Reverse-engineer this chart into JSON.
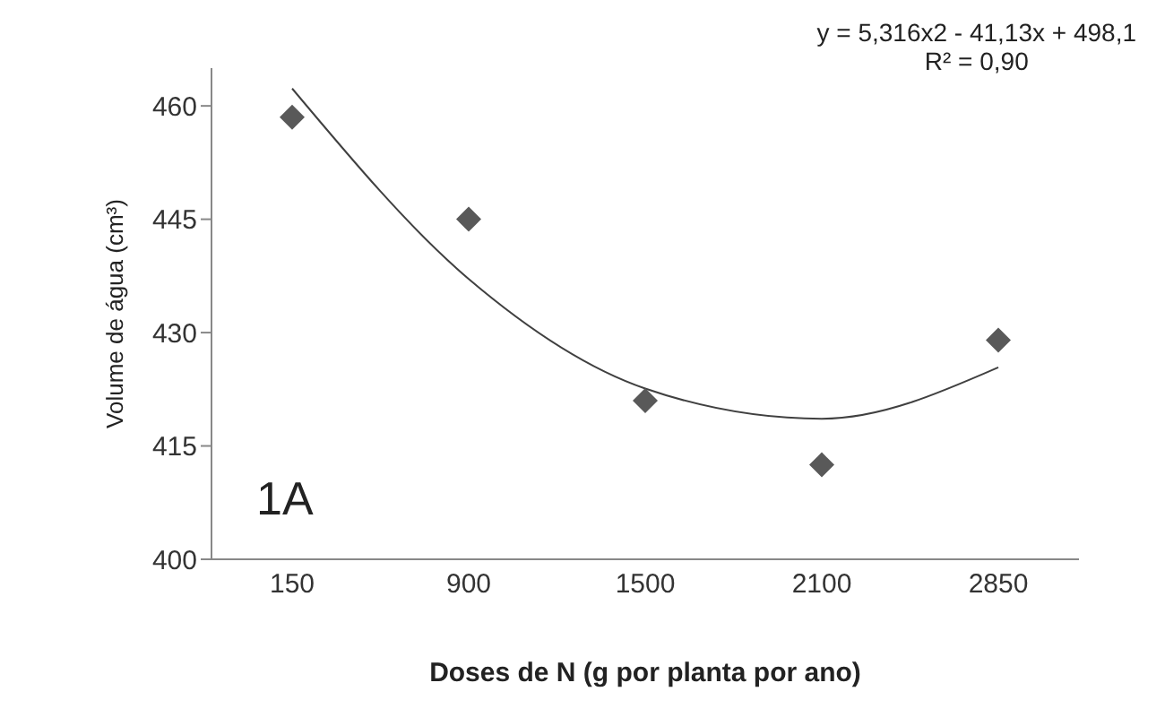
{
  "chart_data": {
    "type": "scatter",
    "xlabel": "Doses de N (g por planta por ano)",
    "ylabel": "Volume de água (cm³)",
    "categories": [
      "150",
      "900",
      "1500",
      "2100",
      "2850"
    ],
    "series": [
      {
        "color": "#595959",
        "marker": "diamond",
        "values": [
          458.5,
          445,
          421,
          412.5,
          429
        ]
      },
      {
        "type": "line",
        "color": "#404040",
        "marker": "none",
        "line_style": "solid",
        "values": [
          462.3,
          437.1,
          422.6,
          418.6,
          425.4
        ]
      }
    ],
    "ylim": [
      400,
      465
    ],
    "yticks": [
      400,
      415,
      430,
      445,
      460
    ],
    "grid": false,
    "legend": false,
    "annotations": [
      "y = 5,316x2 - 41,13x + 498,1",
      "R² = 0,90",
      "1A"
    ]
  }
}
